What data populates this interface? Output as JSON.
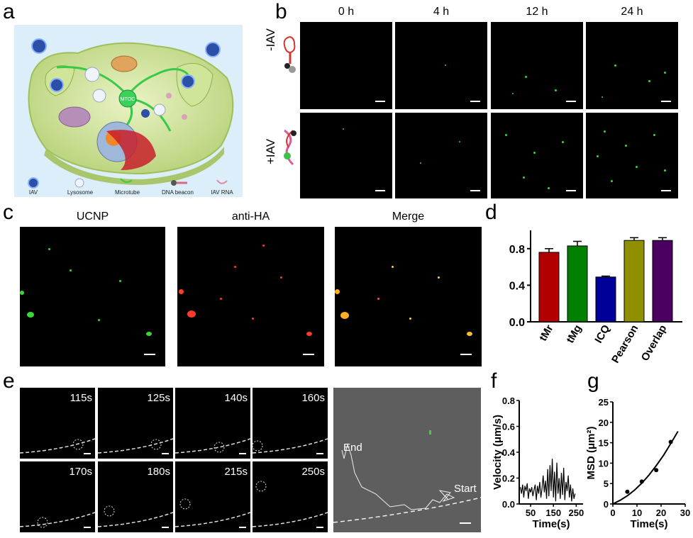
{
  "panels": {
    "a": "a",
    "b": "b",
    "c": "c",
    "d": "d",
    "e": "e",
    "f": "f",
    "g": "g"
  },
  "panel_a": {
    "mtoc_label": "MTOC",
    "legend": [
      "IAV",
      "Lysosome",
      "Microtube",
      "DNA beacon",
      "IAV RNA"
    ]
  },
  "panel_b": {
    "columns": [
      "0 h",
      "4 h",
      "12 h",
      "24 h"
    ],
    "rows": [
      "-IAV",
      "+IAV"
    ]
  },
  "panel_c": {
    "columns": [
      "UCNP",
      "anti-HA",
      "Merge"
    ]
  },
  "panel_e": {
    "times": [
      "115s",
      "125s",
      "140s",
      "160s",
      "170s",
      "180s",
      "215s",
      "250s"
    ],
    "track_start": "Start",
    "track_end": "End"
  },
  "colors": {
    "green": "#39d639",
    "red": "#ff3a2a",
    "dash": "#dddddd"
  },
  "chart_data": [
    {
      "type": "bar",
      "panel": "d",
      "categories": [
        "tMr",
        "tMg",
        "ICQ",
        "Pearson",
        "Overlap"
      ],
      "values": [
        0.76,
        0.83,
        0.49,
        0.89,
        0.89
      ],
      "errors": [
        0.04,
        0.05,
        0.01,
        0.03,
        0.03
      ],
      "colors": [
        "#b20000",
        "#008000",
        "#000099",
        "#8f8f00",
        "#4b0060"
      ],
      "yticks": [
        "0.0",
        "0.4",
        "0.8"
      ],
      "ylim": [
        0,
        1.0
      ]
    },
    {
      "type": "line",
      "panel": "f",
      "ylabel": "Velocity (μm/s)",
      "xlabel": "Time(s)",
      "xticks": [
        "50",
        "150",
        "250"
      ],
      "yticks": [
        "0.0",
        "0.2",
        "0.4",
        "0.6",
        "0.8"
      ],
      "xlim": [
        0,
        280
      ],
      "ylim": [
        0,
        0.8
      ],
      "x": [
        5,
        10,
        15,
        20,
        25,
        30,
        35,
        40,
        45,
        50,
        55,
        60,
        65,
        70,
        75,
        80,
        85,
        90,
        95,
        100,
        105,
        110,
        115,
        120,
        125,
        130,
        135,
        140,
        145,
        150,
        155,
        160,
        165,
        170,
        175,
        180,
        185,
        190,
        195,
        200,
        205,
        210,
        215,
        220,
        225,
        230,
        235,
        240,
        245
      ],
      "y": [
        0.13,
        0.08,
        0.15,
        0.05,
        0.14,
        0.1,
        0.16,
        0.04,
        0.12,
        0.09,
        0.13,
        0.06,
        0.11,
        0.15,
        0.03,
        0.14,
        0.08,
        0.17,
        0.05,
        0.12,
        0.22,
        0.09,
        0.18,
        0.04,
        0.27,
        0.06,
        0.3,
        0.1,
        0.35,
        0.05,
        0.25,
        0.02,
        0.32,
        0.08,
        0.2,
        0.04,
        0.24,
        0.07,
        0.28,
        0.03,
        0.17,
        0.1,
        0.22,
        0.05,
        0.15,
        0.02,
        0.12,
        0.04,
        0.08
      ]
    },
    {
      "type": "scatter",
      "panel": "g",
      "ylabel": "MSD (μm²)",
      "xlabel": "Time(s)",
      "xticks": [
        "0",
        "10",
        "20",
        "30"
      ],
      "yticks": [
        "0",
        "5",
        "10",
        "15",
        "20",
        "25"
      ],
      "xlim": [
        0,
        30
      ],
      "ylim": [
        0,
        25
      ],
      "x": [
        6,
        12,
        18,
        24
      ],
      "y": [
        3.0,
        5.5,
        8.3,
        15.2
      ],
      "fit_x": [
        0,
        3,
        6,
        9,
        12,
        15,
        18,
        21,
        24,
        27
      ],
      "fit_y": [
        0.0,
        0.9,
        2.0,
        3.4,
        5.1,
        7.1,
        9.4,
        11.9,
        14.8,
        17.8
      ]
    }
  ]
}
